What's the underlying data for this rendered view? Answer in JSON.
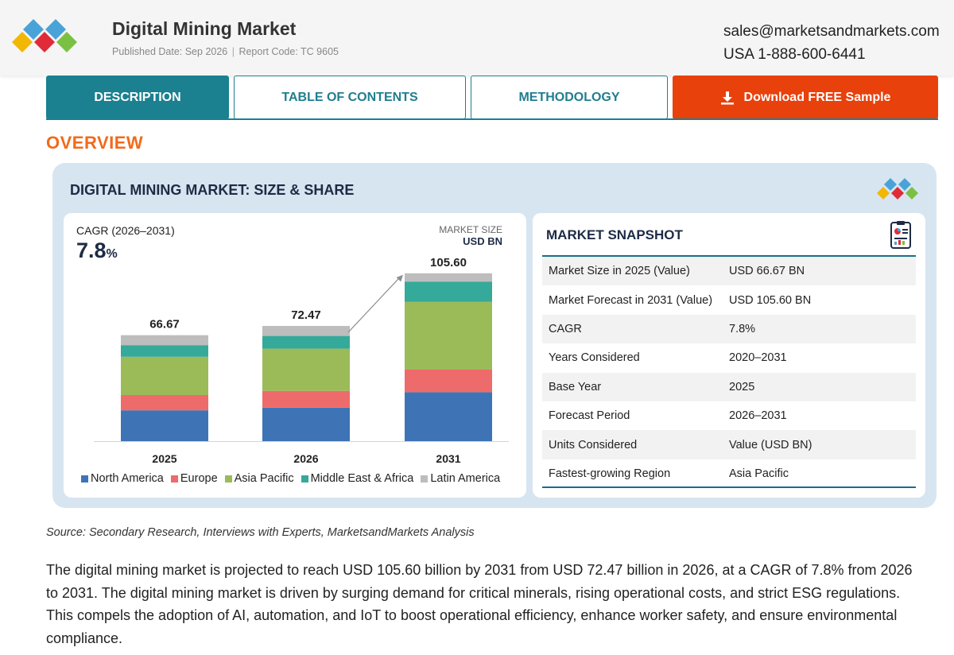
{
  "header": {
    "title": "Digital Mining Market",
    "published": "Published Date: Sep 2026",
    "report_code": "Report Code: TC 9605",
    "email": "sales@marketsandmarkets.com",
    "phone": "USA 1-888-600-6441"
  },
  "tabs": [
    {
      "label": "DESCRIPTION",
      "active": true
    },
    {
      "label": "TABLE OF CONTENTS",
      "active": false
    },
    {
      "label": "METHODOLOGY",
      "active": false
    },
    {
      "label": "Download FREE Sample",
      "icon": "download-icon"
    }
  ],
  "overview_heading": "OVERVIEW",
  "card": {
    "title": "DIGITAL MINING MARKET: SIZE & SHARE"
  },
  "chart_data": {
    "type": "bar",
    "stacked": true,
    "cagr_label": "CAGR (2026–2031)",
    "cagr_value": "7.8",
    "cagr_unit": "%",
    "market_size_label": "MARKET SIZE",
    "market_size_unit": "USD BN",
    "categories": [
      "2025",
      "2026",
      "2031"
    ],
    "totals": [
      "66.67",
      "72.47",
      "105.60"
    ],
    "series": [
      {
        "name": "North America",
        "color": "#3e74b5",
        "values": [
          19.4,
          21.1,
          30.8
        ]
      },
      {
        "name": "Europe",
        "color": "#ee6b6b",
        "values": [
          9.6,
          10.5,
          14.2
        ]
      },
      {
        "name": "Asia Pacific",
        "color": "#9bbb59",
        "values": [
          24.1,
          26.6,
          42.6
        ]
      },
      {
        "name": "Middle East & Africa",
        "color": "#35a99a",
        "values": [
          7.3,
          8.0,
          12.8
        ]
      },
      {
        "name": "Latin America",
        "color": "#bdbdbd",
        "values": [
          6.27,
          6.27,
          5.2
        ]
      }
    ],
    "ylim": [
      0,
      115
    ],
    "growth_arrow": {
      "from": "2026",
      "to": "2031"
    }
  },
  "snapshot": {
    "title": "MARKET SNAPSHOT",
    "rows": [
      {
        "key": "Market Size in 2025 (Value)",
        "value": "USD 66.67 BN"
      },
      {
        "key": "Market Forecast in 2031 (Value)",
        "value": "USD 105.60 BN"
      },
      {
        "key": "CAGR",
        "value": "7.8%"
      },
      {
        "key": "Years Considered",
        "value": "2020–2031"
      },
      {
        "key": "Base Year",
        "value": "2025"
      },
      {
        "key": "Forecast Period",
        "value": "2026–2031"
      },
      {
        "key": "Units Considered",
        "value": "Value (USD BN)"
      },
      {
        "key": "Fastest-growing Region",
        "value": "Asia Pacific"
      }
    ]
  },
  "source": "Source: Secondary Research, Interviews with Experts, MarketsandMarkets Analysis",
  "description": "The digital mining market is projected to reach USD 105.60 billion by 2031 from USD 72.47 billion in 2026, at a CAGR of 7.8% from 2026 to 2031. The digital mining market is driven by surging demand for critical minerals, rising operational costs, and strict ESG regulations. This compels the adoption of AI, automation, and IoT to boost operational efficiency, enhance worker safety, and ensure environmental compliance.",
  "colors": {
    "accent": "#1b8090",
    "download": "#e8410c",
    "overview": "#f26a1b",
    "card_bg": "#d7e5f1",
    "navy": "#1d2b45"
  }
}
